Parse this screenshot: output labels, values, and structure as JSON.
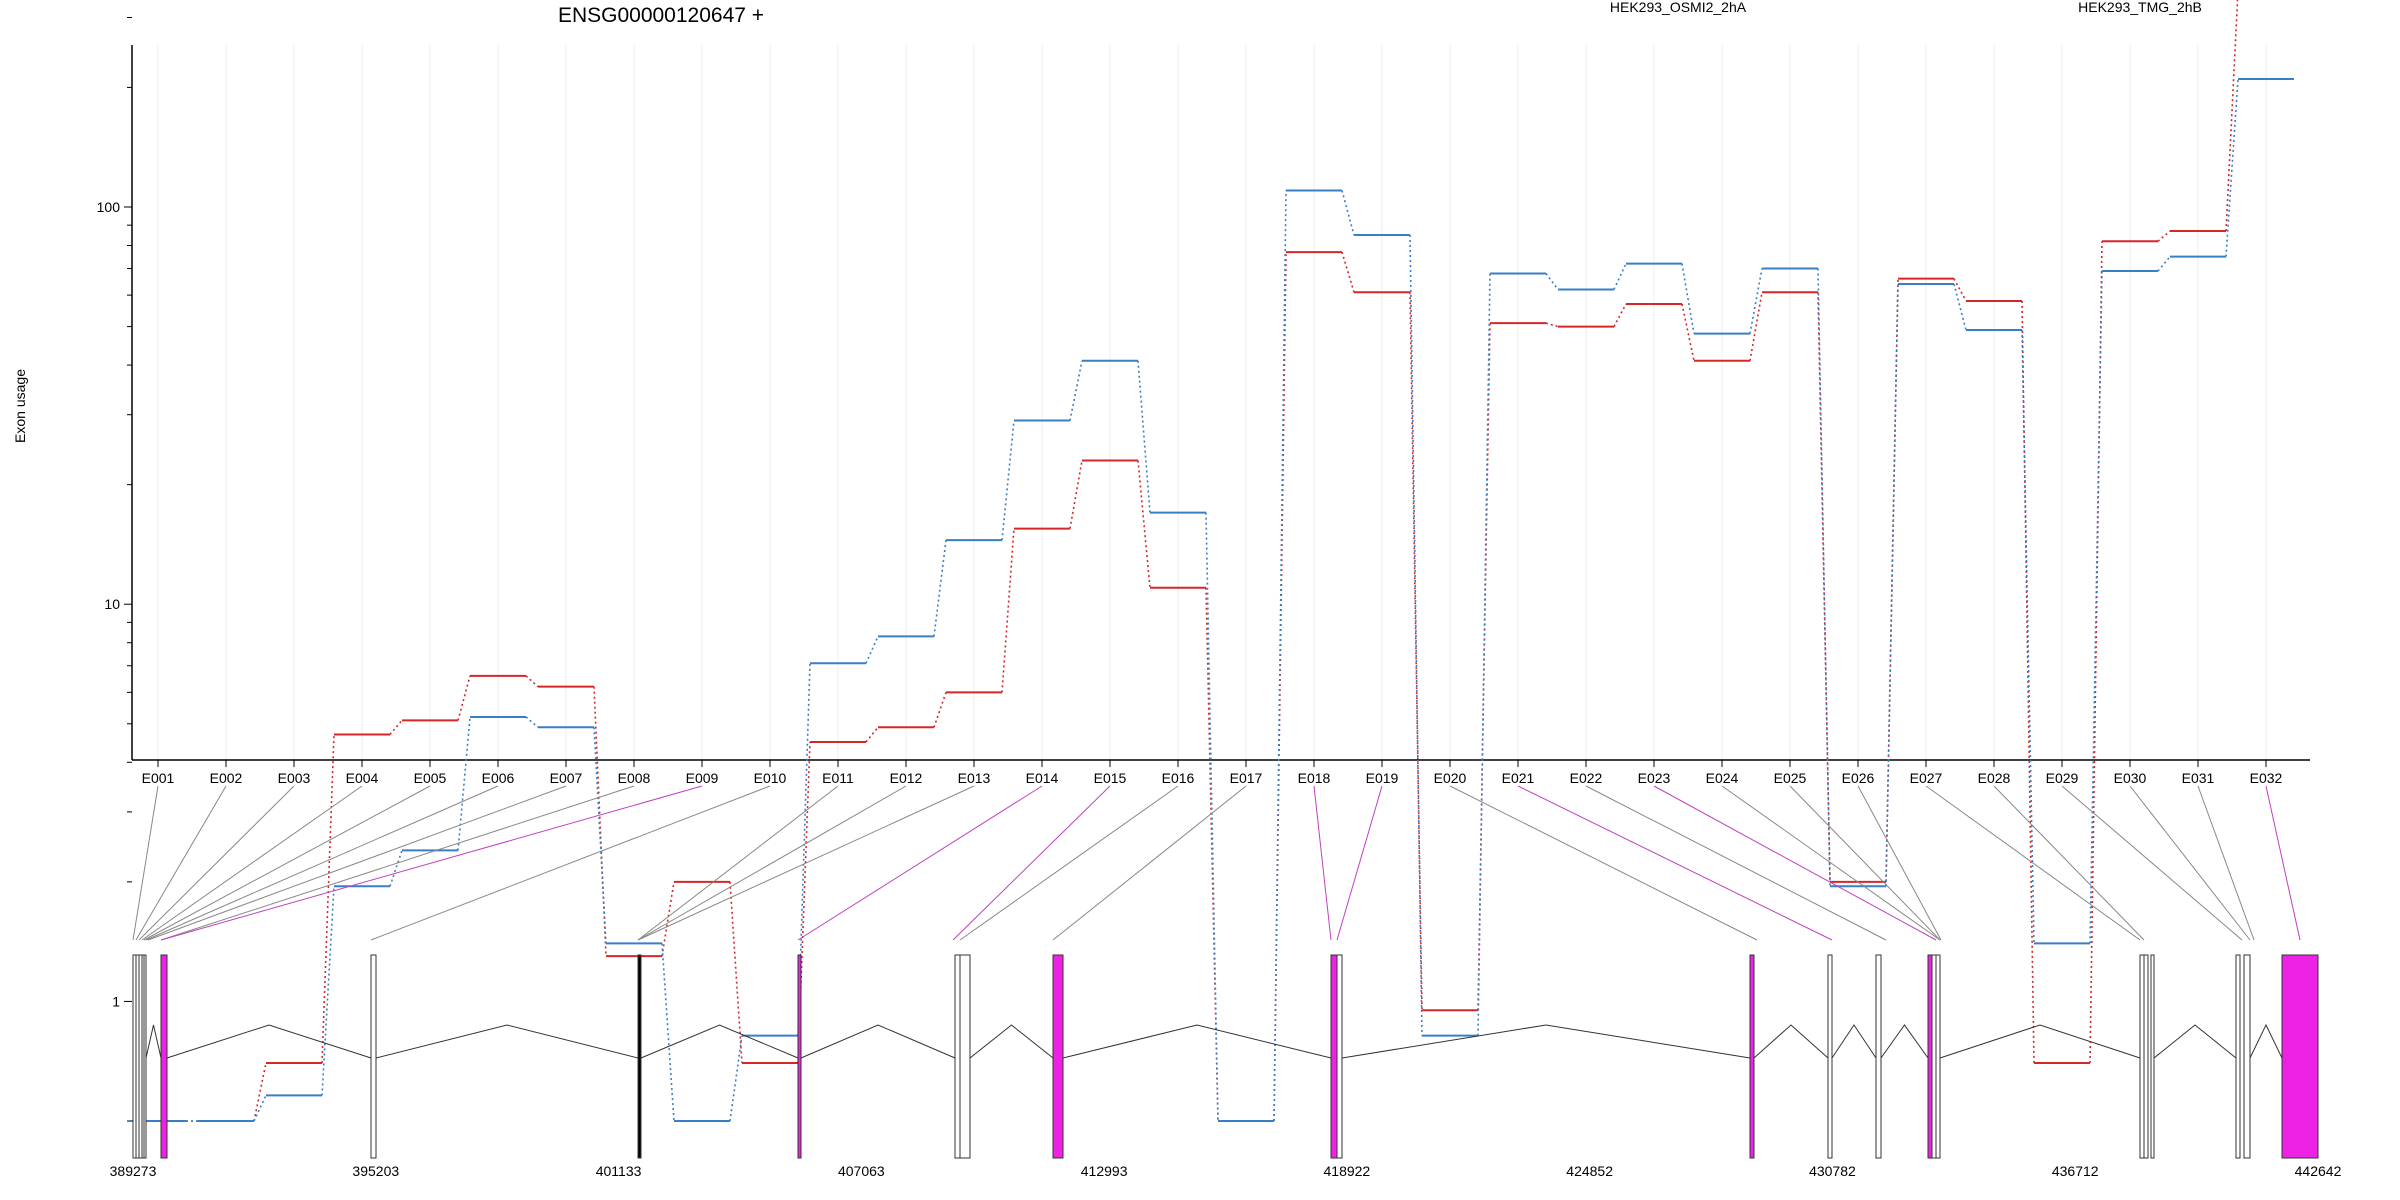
{
  "chart_data": {
    "type": "line",
    "title": "ENSG00000120647 +",
    "ylabel": "Exon usage",
    "y_scale": "log",
    "y_tick_labels": [
      "1",
      "10",
      "100"
    ],
    "ylim": [
      0.5,
      400
    ],
    "categories": [
      "E001",
      "E002",
      "E003",
      "E004",
      "E005",
      "E006",
      "E007",
      "E008",
      "E009",
      "E010",
      "E011",
      "E012",
      "E013",
      "E014",
      "E015",
      "E016",
      "E017",
      "E018",
      "E019",
      "E020",
      "E021",
      "E022",
      "E023",
      "E024",
      "E025",
      "E026",
      "E027",
      "E028",
      "E029",
      "E030",
      "E031",
      "E032"
    ],
    "series": [
      {
        "name": "HEK293_OSMI2_2hA",
        "color": "#d62728",
        "values": [
          0.5,
          0.5,
          0.7,
          4.7,
          5.1,
          6.6,
          6.2,
          1.3,
          2.0,
          0.7,
          4.5,
          4.9,
          6.0,
          15.5,
          23,
          11,
          0.5,
          77,
          61,
          0.95,
          51,
          50,
          57,
          41,
          61,
          2.0,
          66,
          58,
          0.7,
          82,
          87,
          350
        ]
      },
      {
        "name": "HEK293_TMG_2hB",
        "color": "#3a7ec6",
        "values": [
          0.5,
          0.5,
          0.58,
          1.95,
          2.4,
          5.2,
          4.9,
          1.4,
          0.5,
          0.82,
          7.1,
          8.3,
          14.5,
          29,
          41,
          17,
          0.5,
          110,
          85,
          0.82,
          68,
          62,
          72,
          48,
          70,
          1.95,
          64,
          49,
          1.4,
          69,
          75,
          210
        ]
      }
    ],
    "genomic_ticks": [
      "389273",
      "395203",
      "401133",
      "407063",
      "412993",
      "418922",
      "424852",
      "430782",
      "436712",
      "442642"
    ],
    "highlight_color": "#ee22e4",
    "exon_highlighted": [
      false,
      false,
      false,
      false,
      false,
      false,
      false,
      false,
      true,
      false,
      false,
      false,
      false,
      true,
      true,
      false,
      false,
      true,
      true,
      false,
      true,
      false,
      true,
      false,
      false,
      false,
      false,
      false,
      false,
      false,
      false,
      true
    ]
  }
}
